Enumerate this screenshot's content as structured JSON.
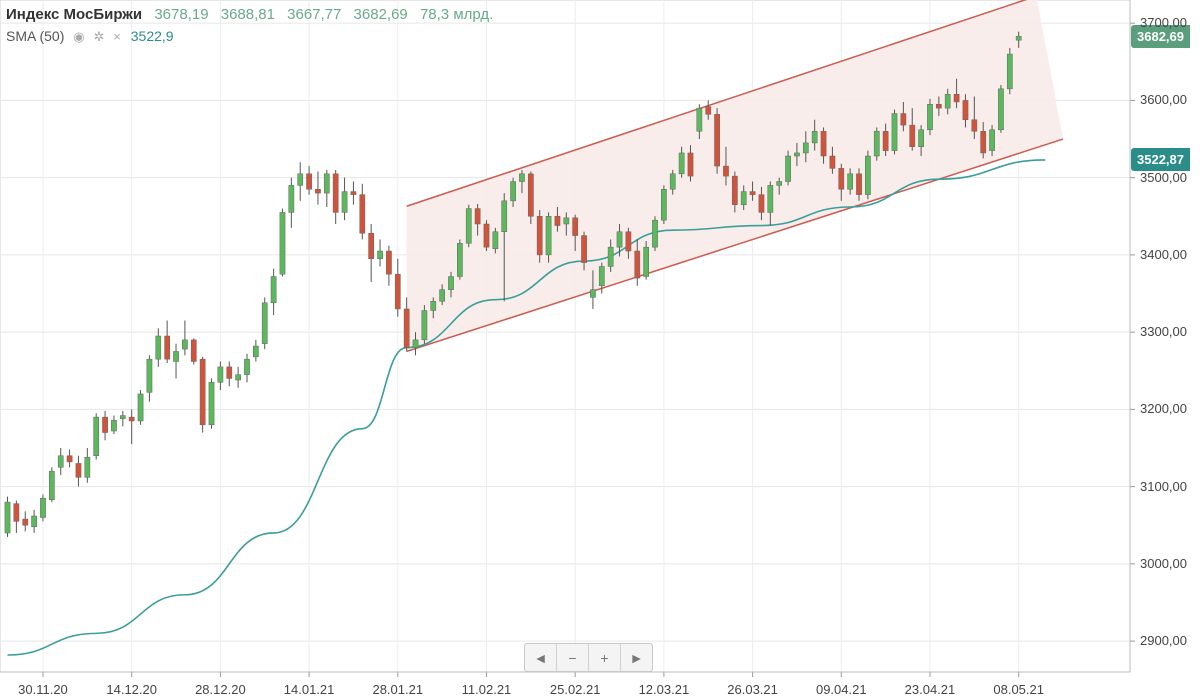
{
  "legend": {
    "title": "Индекс МосБиржи",
    "open": "3678,19",
    "high": "3688,81",
    "low": "3667,77",
    "close": "3682,69",
    "volume": "78,3 млрд.",
    "sma_label": "SMA (50)",
    "sma_value": "3522,9",
    "sma_icons": [
      "eye-icon",
      "gear-icon",
      "close-icon"
    ]
  },
  "price_tags": {
    "last": "3682,69",
    "sma": "3522,87",
    "last_color": "#5a9e7e",
    "sma_color": "#2b8d8a"
  },
  "navigator": {
    "buttons": [
      "◄",
      "−",
      "+",
      "►"
    ]
  },
  "colors": {
    "up": "#5cb85c",
    "down": "#d0543b",
    "sma": "#3a9e9a",
    "channel_line": "#cd5a4d",
    "channel_fill": "#f7ebe8"
  },
  "chart_data": {
    "type": "candlestick",
    "title": "Индекс МосБиржи",
    "ylim": [
      2860,
      3730
    ],
    "y_ticks": [
      "2900,00",
      "3000,00",
      "3100,00",
      "3200,00",
      "3300,00",
      "3400,00",
      "3500,00",
      "3600,00",
      "3700,00"
    ],
    "y_tick_values": [
      2900,
      3000,
      3100,
      3200,
      3300,
      3400,
      3500,
      3600,
      3700
    ],
    "x_ticks": [
      "30.11.20",
      "14.12.20",
      "28.12.20",
      "14.01.21",
      "28.01.21",
      "11.02.21",
      "25.02.21",
      "12.03.21",
      "26.03.21",
      "09.04.21",
      "23.04.21",
      "08.05.21"
    ],
    "x_tick_index": [
      4,
      14,
      24,
      34,
      44,
      54,
      64,
      74,
      84,
      94,
      104,
      114
    ],
    "grid": true,
    "series": [
      {
        "name": "Индекс МосБиржи",
        "ohlc": [
          [
            3040,
            3087,
            3035,
            3080
          ],
          [
            3078,
            3082,
            3040,
            3055
          ],
          [
            3058,
            3068,
            3042,
            3050
          ],
          [
            3048,
            3070,
            3040,
            3062
          ],
          [
            3060,
            3090,
            3055,
            3085
          ],
          [
            3083,
            3125,
            3080,
            3120
          ],
          [
            3125,
            3150,
            3115,
            3140
          ],
          [
            3140,
            3148,
            3125,
            3132
          ],
          [
            3130,
            3140,
            3100,
            3112
          ],
          [
            3112,
            3150,
            3105,
            3138
          ],
          [
            3140,
            3195,
            3135,
            3190
          ],
          [
            3190,
            3198,
            3160,
            3170
          ],
          [
            3172,
            3192,
            3168,
            3186
          ],
          [
            3188,
            3198,
            3178,
            3192
          ],
          [
            3190,
            3200,
            3155,
            3185
          ],
          [
            3185,
            3225,
            3180,
            3220
          ],
          [
            3222,
            3270,
            3210,
            3265
          ],
          [
            3265,
            3305,
            3255,
            3295
          ],
          [
            3295,
            3315,
            3260,
            3265
          ],
          [
            3262,
            3285,
            3240,
            3275
          ],
          [
            3278,
            3315,
            3270,
            3290
          ],
          [
            3290,
            3292,
            3258,
            3262
          ],
          [
            3265,
            3268,
            3170,
            3180
          ],
          [
            3180,
            3240,
            3175,
            3235
          ],
          [
            3235,
            3262,
            3225,
            3255
          ],
          [
            3255,
            3262,
            3230,
            3240
          ],
          [
            3238,
            3255,
            3228,
            3245
          ],
          [
            3245,
            3272,
            3235,
            3265
          ],
          [
            3268,
            3290,
            3262,
            3282
          ],
          [
            3285,
            3345,
            3278,
            3338
          ],
          [
            3338,
            3382,
            3322,
            3372
          ],
          [
            3375,
            3460,
            3372,
            3455
          ],
          [
            3455,
            3500,
            3435,
            3490
          ],
          [
            3490,
            3520,
            3470,
            3505
          ],
          [
            3505,
            3515,
            3478,
            3485
          ],
          [
            3485,
            3508,
            3465,
            3480
          ],
          [
            3480,
            3510,
            3462,
            3505
          ],
          [
            3505,
            3510,
            3440,
            3455
          ],
          [
            3455,
            3500,
            3445,
            3482
          ],
          [
            3482,
            3495,
            3465,
            3478
          ],
          [
            3478,
            3492,
            3420,
            3428
          ],
          [
            3428,
            3440,
            3365,
            3395
          ],
          [
            3395,
            3420,
            3385,
            3405
          ],
          [
            3405,
            3412,
            3360,
            3375
          ],
          [
            3375,
            3395,
            3320,
            3330
          ],
          [
            3330,
            3345,
            3275,
            3280
          ],
          [
            3280,
            3300,
            3270,
            3290
          ],
          [
            3290,
            3335,
            3285,
            3328
          ],
          [
            3328,
            3345,
            3318,
            3340
          ],
          [
            3340,
            3362,
            3335,
            3355
          ],
          [
            3355,
            3378,
            3345,
            3372
          ],
          [
            3372,
            3420,
            3368,
            3415
          ],
          [
            3415,
            3465,
            3410,
            3460
          ],
          [
            3460,
            3466,
            3425,
            3440
          ],
          [
            3440,
            3445,
            3405,
            3410
          ],
          [
            3408,
            3435,
            3402,
            3430
          ],
          [
            3430,
            3480,
            3340,
            3470
          ],
          [
            3470,
            3500,
            3462,
            3495
          ],
          [
            3495,
            3510,
            3480,
            3505
          ],
          [
            3505,
            3508,
            3440,
            3450
          ],
          [
            3450,
            3458,
            3390,
            3400
          ],
          [
            3400,
            3455,
            3390,
            3450
          ],
          [
            3450,
            3462,
            3430,
            3438
          ],
          [
            3440,
            3455,
            3425,
            3448
          ],
          [
            3448,
            3452,
            3405,
            3425
          ],
          [
            3425,
            3430,
            3380,
            3390
          ],
          [
            3345,
            3380,
            3330,
            3355
          ],
          [
            3360,
            3390,
            3350,
            3385
          ],
          [
            3385,
            3420,
            3378,
            3410
          ],
          [
            3410,
            3440,
            3398,
            3430
          ],
          [
            3430,
            3435,
            3395,
            3405
          ],
          [
            3405,
            3420,
            3360,
            3370
          ],
          [
            3372,
            3418,
            3368,
            3410
          ],
          [
            3410,
            3450,
            3405,
            3445
          ],
          [
            3445,
            3490,
            3440,
            3485
          ],
          [
            3485,
            3510,
            3478,
            3505
          ],
          [
            3505,
            3540,
            3500,
            3532
          ],
          [
            3532,
            3542,
            3495,
            3502
          ],
          [
            3560,
            3595,
            3550,
            3590
          ],
          [
            3592,
            3600,
            3575,
            3582
          ],
          [
            3582,
            3590,
            3505,
            3515
          ],
          [
            3515,
            3540,
            3490,
            3502
          ],
          [
            3502,
            3508,
            3455,
            3465
          ],
          [
            3465,
            3490,
            3458,
            3482
          ],
          [
            3482,
            3495,
            3470,
            3478
          ],
          [
            3478,
            3488,
            3445,
            3455
          ],
          [
            3455,
            3495,
            3438,
            3490
          ],
          [
            3490,
            3500,
            3478,
            3495
          ],
          [
            3495,
            3535,
            3490,
            3528
          ],
          [
            3528,
            3545,
            3515,
            3532
          ],
          [
            3532,
            3560,
            3520,
            3545
          ],
          [
            3545,
            3575,
            3535,
            3560
          ],
          [
            3560,
            3565,
            3518,
            3528
          ],
          [
            3528,
            3540,
            3505,
            3512
          ],
          [
            3512,
            3518,
            3470,
            3485
          ],
          [
            3485,
            3512,
            3478,
            3505
          ],
          [
            3505,
            3512,
            3470,
            3478
          ],
          [
            3478,
            3535,
            3472,
            3528
          ],
          [
            3528,
            3565,
            3522,
            3560
          ],
          [
            3560,
            3570,
            3528,
            3535
          ],
          [
            3535,
            3588,
            3530,
            3583
          ],
          [
            3583,
            3598,
            3560,
            3568
          ],
          [
            3568,
            3590,
            3535,
            3540
          ],
          [
            3540,
            3568,
            3528,
            3562
          ],
          [
            3562,
            3602,
            3555,
            3595
          ],
          [
            3595,
            3605,
            3580,
            3590
          ],
          [
            3590,
            3615,
            3582,
            3608
          ],
          [
            3608,
            3628,
            3590,
            3598
          ],
          [
            3600,
            3608,
            3565,
            3575
          ],
          [
            3575,
            3605,
            3550,
            3560
          ],
          [
            3560,
            3572,
            3525,
            3532
          ],
          [
            3535,
            3568,
            3528,
            3562
          ],
          [
            3562,
            3620,
            3558,
            3615
          ],
          [
            3615,
            3668,
            3608,
            3660
          ],
          [
            3678,
            3689,
            3668,
            3683
          ]
        ]
      },
      {
        "name": "SMA (50)",
        "points": [
          [
            0,
            2882
          ],
          [
            10,
            2910
          ],
          [
            20,
            2960
          ],
          [
            30,
            3040
          ],
          [
            40,
            3175
          ],
          [
            45,
            3280
          ],
          [
            55,
            3342
          ],
          [
            65,
            3392
          ],
          [
            75,
            3432
          ],
          [
            85,
            3438
          ],
          [
            95,
            3462
          ],
          [
            105,
            3498
          ],
          [
            117,
            3523
          ]
        ]
      }
    ],
    "channel": {
      "upper": [
        [
          45,
          3463
        ],
        [
          116,
          3735
        ]
      ],
      "lower": [
        [
          45,
          3275
        ],
        [
          119,
          3550
        ]
      ]
    }
  }
}
